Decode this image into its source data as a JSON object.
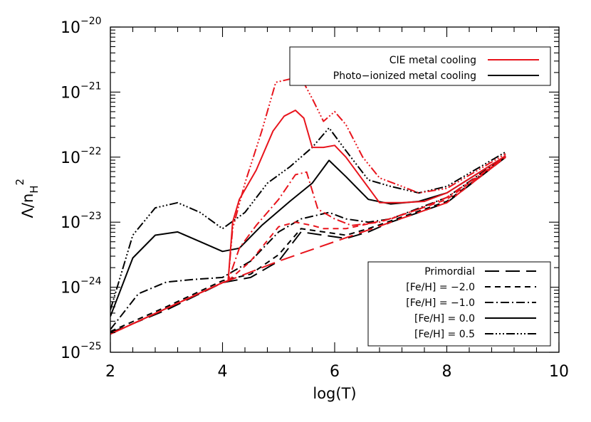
{
  "chart_data": {
    "type": "line",
    "xlabel": "log(T)",
    "ylabel": "Λ/n_H^2",
    "xlim": [
      2,
      10
    ],
    "ylim_log10": [
      -25,
      -20
    ],
    "y_scale": "log",
    "x_ticks": [
      2,
      4,
      6,
      8,
      10
    ],
    "x_tick_labels": [
      "2",
      "4",
      "6",
      "8",
      "10"
    ],
    "y_tick_exponents": [
      -25,
      -24,
      -23,
      -22,
      -21,
      -20
    ],
    "y_tick_base": "10",
    "y_tick_labels": [
      "−25",
      "−24",
      "−23",
      "−22",
      "−21",
      "−20"
    ],
    "legend_color": {
      "placement": "top-right",
      "entries": [
        {
          "label": "CIE metal cooling",
          "color": "#e8141c",
          "dash": "solid"
        },
        {
          "label": "Photo−ionized metal cooling",
          "color": "#000000",
          "dash": "solid"
        }
      ]
    },
    "legend_style": {
      "placement": "bottom-right",
      "entries": [
        {
          "label": "Primordial",
          "dash": "longdash"
        },
        {
          "label": "[Fe/H] = −2.0",
          "dash": "dash"
        },
        {
          "label": "[Fe/H] = −1.0",
          "dash": "dashdot"
        },
        {
          "label": "[Fe/H] = 0.0",
          "dash": "solid"
        },
        {
          "label": "[Fe/H] = 0.5",
          "dash": "dashdotdotdot"
        }
      ]
    },
    "series": [
      {
        "key": "cie-primordial",
        "color": "#e8141c",
        "dash": "longdash",
        "x": [
          2.0,
          4.0,
          4.1,
          5.0,
          6.0,
          7.0,
          8.0,
          9.05
        ],
        "y_log10": [
          -24.72,
          -23.93,
          -23.9,
          -23.6,
          -23.3,
          -23.0,
          -22.7,
          -22.0
        ]
      },
      {
        "key": "cie-m2",
        "color": "#e8141c",
        "dash": "dash",
        "x": [
          2.0,
          4.0,
          4.1,
          4.5,
          5.0,
          5.3,
          5.6,
          5.8,
          6.2,
          7.0,
          8.0,
          9.05
        ],
        "y_log10": [
          -24.72,
          -23.93,
          -23.9,
          -23.6,
          -23.07,
          -23.0,
          -23.05,
          -23.1,
          -23.1,
          -22.95,
          -22.65,
          -22.0
        ]
      },
      {
        "key": "cie-m1",
        "color": "#e8141c",
        "dash": "dashdot",
        "x": [
          2.0,
          4.0,
          4.1,
          4.3,
          4.6,
          5.0,
          5.3,
          5.5,
          5.7,
          6.0,
          6.3,
          6.8,
          7.5,
          8.0,
          9.05
        ],
        "y_log10": [
          -24.72,
          -23.93,
          -23.9,
          -23.4,
          -23.05,
          -22.65,
          -22.27,
          -22.23,
          -22.8,
          -22.95,
          -23.05,
          -23.0,
          -22.8,
          -22.62,
          -22.0
        ]
      },
      {
        "key": "cie-0",
        "color": "#e8141c",
        "dash": "solid",
        "x": [
          2.0,
          4.0,
          4.1,
          4.18,
          4.3,
          4.6,
          4.9,
          5.1,
          5.3,
          5.45,
          5.6,
          5.8,
          6.0,
          6.2,
          6.5,
          6.8,
          7.2,
          7.6,
          8.0,
          9.05
        ],
        "y_log10": [
          -24.72,
          -23.93,
          -23.9,
          -23.0,
          -22.65,
          -22.2,
          -21.6,
          -21.37,
          -21.28,
          -21.4,
          -21.85,
          -21.85,
          -21.82,
          -22.0,
          -22.35,
          -22.7,
          -22.7,
          -22.68,
          -22.55,
          -21.98
        ]
      },
      {
        "key": "cie-05",
        "color": "#e8141c",
        "dash": "dashdotdotdot",
        "x": [
          2.0,
          4.0,
          4.1,
          4.18,
          4.4,
          4.7,
          4.95,
          5.2,
          5.4,
          5.6,
          5.8,
          6.0,
          6.2,
          6.5,
          6.8,
          7.2,
          7.5,
          8.0,
          9.05
        ],
        "y_log10": [
          -24.72,
          -23.93,
          -23.9,
          -23.1,
          -22.4,
          -21.6,
          -20.85,
          -20.8,
          -20.78,
          -21.1,
          -21.45,
          -21.3,
          -21.5,
          -22.0,
          -22.32,
          -22.45,
          -22.55,
          -22.48,
          -21.95
        ]
      },
      {
        "key": "pi-primordial",
        "color": "#000000",
        "dash": "longdash",
        "x": [
          2.0,
          3.0,
          4.0,
          4.5,
          5.0,
          5.4,
          5.8,
          6.2,
          6.6,
          7.0,
          8.0,
          9.05
        ],
        "y_log10": [
          -24.7,
          -24.35,
          -23.93,
          -23.85,
          -23.6,
          -23.15,
          -23.2,
          -23.25,
          -23.15,
          -23.0,
          -22.7,
          -22.0
        ]
      },
      {
        "key": "pi-m2",
        "color": "#000000",
        "dash": "dash",
        "x": [
          2.0,
          3.0,
          4.0,
          4.5,
          5.0,
          5.4,
          5.8,
          6.2,
          6.6,
          7.0,
          8.0,
          9.05
        ],
        "y_log10": [
          -24.68,
          -24.3,
          -23.9,
          -23.8,
          -23.5,
          -23.1,
          -23.15,
          -23.2,
          -23.1,
          -22.98,
          -22.68,
          -22.0
        ]
      },
      {
        "key": "pi-m1",
        "color": "#000000",
        "dash": "dashdot",
        "x": [
          2.0,
          2.5,
          3.0,
          3.5,
          4.0,
          4.5,
          5.0,
          5.4,
          5.9,
          6.2,
          6.6,
          7.0,
          8.0,
          9.05
        ],
        "y_log10": [
          -24.65,
          -24.1,
          -23.92,
          -23.88,
          -23.85,
          -23.6,
          -23.15,
          -22.95,
          -22.85,
          -22.95,
          -23.0,
          -22.95,
          -22.62,
          -21.98
        ]
      },
      {
        "key": "pi-0",
        "color": "#000000",
        "dash": "solid",
        "x": [
          2.0,
          2.4,
          2.8,
          3.2,
          3.6,
          4.0,
          4.3,
          4.7,
          5.2,
          5.6,
          5.9,
          6.2,
          6.6,
          7.0,
          7.5,
          8.0,
          9.05
        ],
        "y_log10": [
          -24.45,
          -23.55,
          -23.2,
          -23.15,
          -23.3,
          -23.45,
          -23.4,
          -23.05,
          -22.68,
          -22.4,
          -22.05,
          -22.3,
          -22.65,
          -22.72,
          -22.68,
          -22.55,
          -21.98
        ]
      },
      {
        "key": "pi-05",
        "color": "#000000",
        "dash": "dashdotdotdot",
        "x": [
          2.0,
          2.4,
          2.8,
          3.2,
          3.6,
          4.0,
          4.4,
          4.8,
          5.2,
          5.6,
          5.9,
          6.2,
          6.6,
          7.0,
          7.5,
          8.0,
          9.05
        ],
        "y_log10": [
          -24.35,
          -23.2,
          -22.78,
          -22.7,
          -22.85,
          -23.1,
          -22.85,
          -22.4,
          -22.15,
          -21.85,
          -21.55,
          -21.9,
          -22.35,
          -22.45,
          -22.55,
          -22.45,
          -21.92
        ]
      }
    ]
  }
}
